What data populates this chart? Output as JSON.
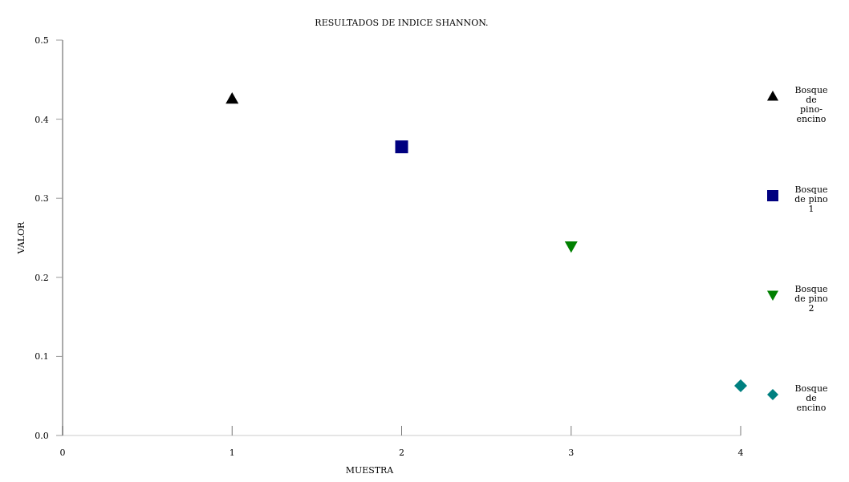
{
  "chart_data": {
    "type": "scatter",
    "title": "RESULTADOS DE INDICE SHANNON.",
    "xlabel": "MUESTRA",
    "ylabel": "VALOR",
    "xlim": [
      0,
      4
    ],
    "xticks": [
      0,
      1,
      2,
      3,
      4
    ],
    "ylim": [
      0,
      0.5
    ],
    "yticks": [
      {
        "value": 0,
        "label": "0.0"
      },
      0.1,
      0.2,
      0.3,
      0.4,
      0.5
    ],
    "grid": false,
    "legend": "right",
    "series": [
      {
        "name": "Bosque de pino-encino",
        "color": "#000000",
        "marker": "triangle",
        "x": [
          1
        ],
        "values": [
          0.426
        ]
      },
      {
        "name": "Bosque de pino 1",
        "color": "#000080",
        "marker": "square",
        "x": [
          2
        ],
        "values": [
          0.365
        ]
      },
      {
        "name": "Bosque de pino 2",
        "color": "#008000",
        "marker": "triangle-down",
        "x": [
          3
        ],
        "values": [
          0.239
        ]
      },
      {
        "name": "Bosque de encino",
        "color": "#008080",
        "marker": "diamond",
        "x": [
          4
        ],
        "values": [
          0.063
        ]
      }
    ]
  }
}
